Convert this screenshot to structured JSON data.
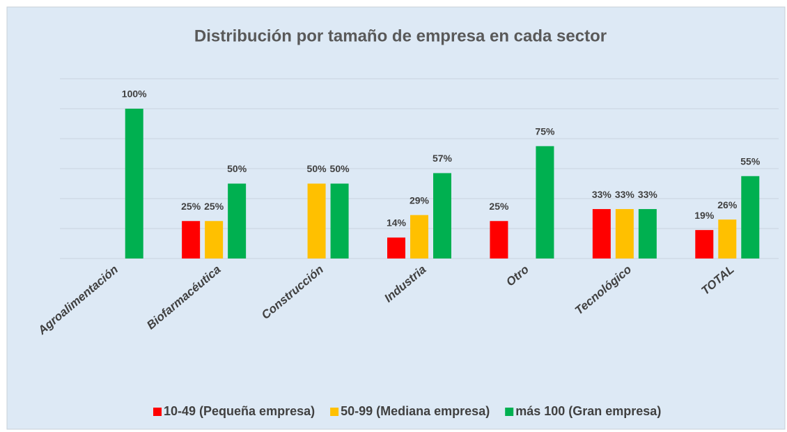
{
  "chart_data": {
    "type": "bar",
    "title": "Distribución por tamaño de empresa en cada sector",
    "categories": [
      "Agroalimentación",
      "Biofarmacéutica",
      "Construcción",
      "Industria",
      "Otro",
      "Tecnológico",
      "TOTAL"
    ],
    "series": [
      {
        "name": "10-49 (Pequeña empresa)",
        "color": "#ff0000",
        "values": [
          null,
          25,
          null,
          14,
          25,
          33,
          19
        ],
        "value_labels": [
          null,
          "25%",
          null,
          "14%",
          "25%",
          "33%",
          "19%"
        ]
      },
      {
        "name": "50-99 (Mediana empresa)",
        "color": "#ffc000",
        "values": [
          null,
          25,
          50,
          29,
          null,
          33,
          26
        ],
        "value_labels": [
          null,
          "25%",
          "50%",
          "29%",
          null,
          "33%",
          "26%"
        ]
      },
      {
        "name": "más 100 (Gran empresa)",
        "color": "#00b050",
        "values": [
          100,
          50,
          50,
          57,
          75,
          33,
          55
        ],
        "value_labels": [
          "100%",
          "50%",
          "50%",
          "57%",
          "75%",
          "33%",
          "55%"
        ]
      }
    ],
    "ylim": [
      0,
      120
    ],
    "yticks": [
      0,
      20,
      40,
      60,
      80,
      100,
      120
    ],
    "grid": true,
    "legend": "bottom"
  }
}
